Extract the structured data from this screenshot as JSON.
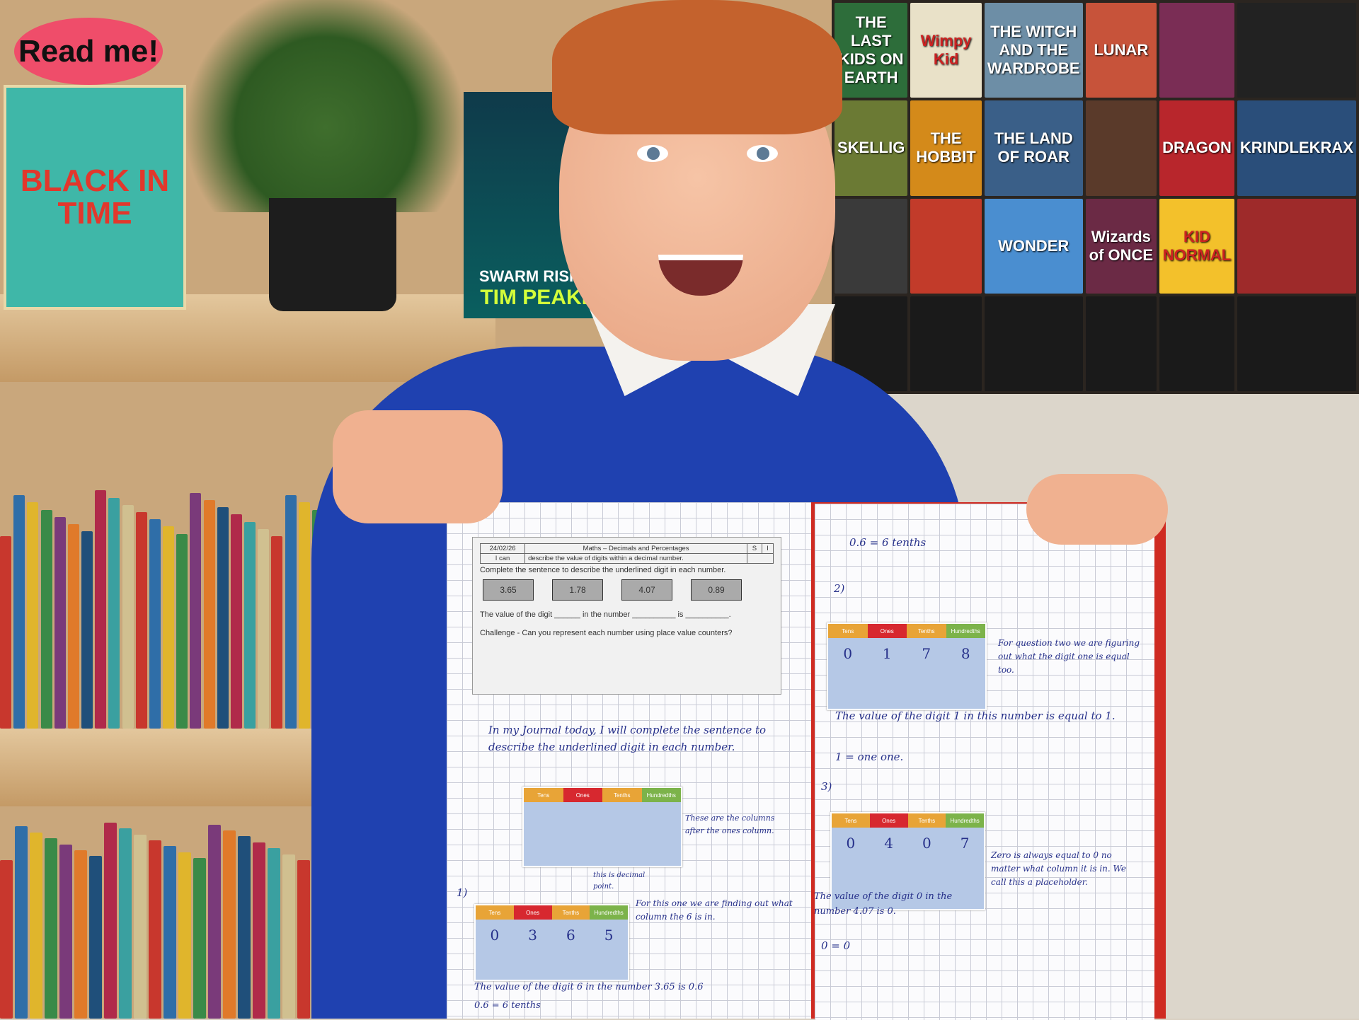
{
  "scene": {
    "description_free": true,
    "books": [
      "Read me!",
      "BLACK IN TIME",
      "TIM PEAKE",
      "SKELLIG",
      "THE HOBBIT",
      "LUNAR",
      "THE LAND OF ROAR",
      "DRAGON",
      "KRINDLEKRAX",
      "WONDER",
      "KID NORMAL",
      "THE LAST KIDS ON EARTH",
      "Wimpy Kid",
      "THE WITCH AND THE WARDROBE",
      "Wizards of ONCE",
      "SWARM RISING"
    ],
    "colors": {
      "sweater": "#1f41b0",
      "notebook_cover": "#cf2b22",
      "ink": "#26308a"
    }
  },
  "worksheet": {
    "date": "24/02/26",
    "subject": "Maths – Decimals and Percentages",
    "col_s": "S",
    "col_i": "I",
    "i_can_label": "I can",
    "i_can_text": "describe the value of digits within a decimal number.",
    "instruction": "Complete the sentence to describe the underlined digit in each number.",
    "numbers": [
      "3.65",
      "1.78",
      "4.07",
      "0.89"
    ],
    "sentence": "The value of the digit ______ in the number __________ is __________.",
    "challenge": "Challenge - Can you represent each number using place value counters?"
  },
  "place_value_headers": [
    "Tens",
    "Ones",
    "Tenths",
    "Hundredths"
  ],
  "charts": [
    {
      "digits": [
        "",
        "",
        "",
        ""
      ]
    },
    {
      "digits": [
        "0",
        "3",
        "6",
        "5"
      ]
    },
    {
      "digits": [
        "0",
        "1",
        "7",
        "8"
      ]
    },
    {
      "digits": [
        "0",
        "4",
        "0",
        "7"
      ]
    }
  ],
  "handwriting": {
    "intro": "In my Journal today, I will complete the sentence to describe the underlined digit in each number.",
    "columns_note": "These are the columns after the ones column.",
    "decimal_note": "this is decimal point.",
    "q1_label": "1)",
    "q1_note": "For this one we are finding out what column the 6 is in.",
    "q1_answer": "The value of the digit 6 in the number 3.65 is 0.6",
    "q1_result": "0.6 = 6 tenths",
    "q2_label": "2)",
    "q2_note": "For question two we are figuring out what the digit one is equal too.",
    "q2_answer": "The value of the digit 1 in this number is equal to 1.",
    "q2_result": "1 = one one.",
    "q3_label": "3)",
    "q3_note": "Zero is always equal to 0 no matter what column it is in. We call this a placeholder.",
    "q3_answer": "The value of the digit 0 in the number 4.07 is 0.",
    "q3_result": "0 = 0"
  }
}
